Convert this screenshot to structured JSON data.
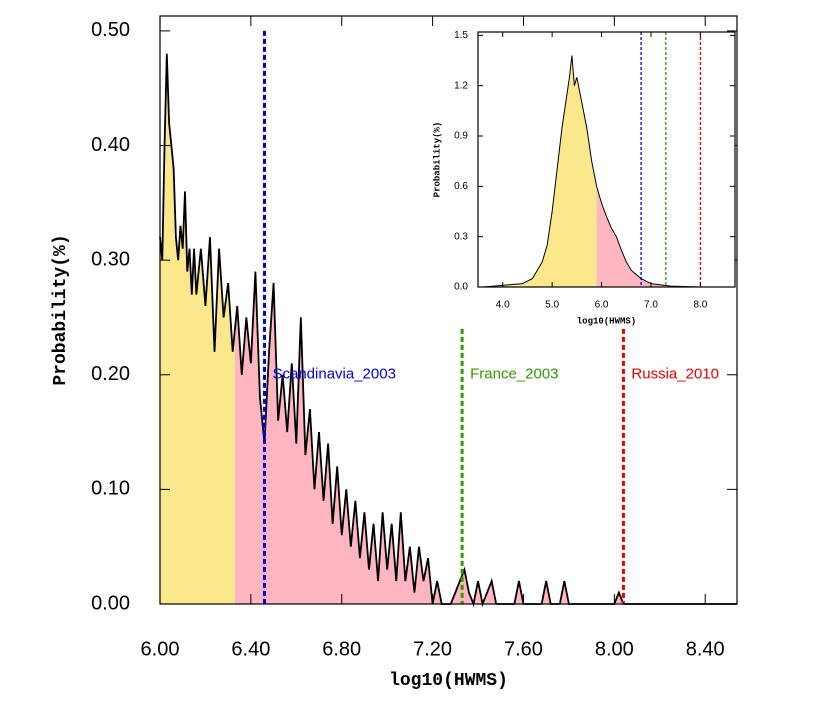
{
  "chart_data": [
    {
      "type": "area",
      "xlabel": "log10(HWMS)",
      "ylabel": "Probability(%)",
      "x": [
        6.0,
        6.01,
        6.02,
        6.03,
        6.04,
        6.05,
        6.06,
        6.07,
        6.08,
        6.09,
        6.1,
        6.11,
        6.12,
        6.13,
        6.14,
        6.15,
        6.16,
        6.18,
        6.2,
        6.22,
        6.24,
        6.26,
        6.28,
        6.3,
        6.32,
        6.34,
        6.36,
        6.38,
        6.4,
        6.42,
        6.44,
        6.46,
        6.48,
        6.5,
        6.52,
        6.54,
        6.56,
        6.58,
        6.6,
        6.62,
        6.64,
        6.66,
        6.68,
        6.7,
        6.72,
        6.74,
        6.76,
        6.78,
        6.8,
        6.82,
        6.84,
        6.86,
        6.88,
        6.9,
        6.92,
        6.94,
        6.96,
        6.98,
        7.0,
        7.02,
        7.04,
        7.06,
        7.08,
        7.1,
        7.12,
        7.14,
        7.16,
        7.18,
        7.2,
        7.22,
        7.24,
        7.28,
        7.3,
        7.32,
        7.34,
        7.36,
        7.38,
        7.4,
        7.42,
        7.46,
        7.48,
        7.56,
        7.58,
        7.6,
        7.68,
        7.7,
        7.72,
        7.76,
        7.78,
        7.8,
        8.0,
        8.02,
        8.04,
        8.54
      ],
      "values": [
        0.32,
        0.3,
        0.4,
        0.48,
        0.42,
        0.4,
        0.38,
        0.32,
        0.3,
        0.33,
        0.31,
        0.36,
        0.29,
        0.31,
        0.27,
        0.31,
        0.27,
        0.31,
        0.26,
        0.32,
        0.22,
        0.31,
        0.25,
        0.28,
        0.22,
        0.26,
        0.2,
        0.25,
        0.21,
        0.29,
        0.18,
        0.14,
        0.22,
        0.28,
        0.16,
        0.2,
        0.15,
        0.21,
        0.14,
        0.25,
        0.13,
        0.17,
        0.1,
        0.15,
        0.09,
        0.14,
        0.07,
        0.12,
        0.06,
        0.1,
        0.05,
        0.09,
        0.04,
        0.08,
        0.03,
        0.07,
        0.02,
        0.08,
        0.03,
        0.07,
        0.02,
        0.08,
        0.02,
        0.05,
        0.01,
        0.05,
        0.02,
        0.04,
        0.0,
        0.02,
        0.0,
        0.0,
        0.01,
        0.02,
        0.03,
        0.01,
        0.0,
        0.02,
        0.0,
        0.02,
        0.0,
        0.0,
        0.02,
        0.0,
        0.0,
        0.02,
        0.0,
        0.0,
        0.02,
        0.0,
        0.0,
        0.01,
        0.0,
        0.0
      ],
      "fill_split": 6.33,
      "colors": [
        "#fbe88c",
        "#ffb6c1"
      ],
      "line_color": "#000000",
      "xlim": [
        6.0,
        8.54
      ],
      "ylim": [
        0,
        0.513
      ],
      "xticks": [
        {
          "value": 6.0,
          "label": "6.00"
        },
        {
          "value": 6.4,
          "label": "6.40"
        },
        {
          "value": 6.8,
          "label": "6.80"
        },
        {
          "value": 7.2,
          "label": "7.20"
        },
        {
          "value": 7.6,
          "label": "7.60"
        },
        {
          "value": 8.0,
          "label": "8.00"
        },
        {
          "value": 8.4,
          "label": "8.40"
        }
      ],
      "yticks": [
        {
          "value": 0,
          "label": "0.00"
        },
        {
          "value": 0.1,
          "label": "0.10"
        },
        {
          "value": 0.2,
          "label": "0.20"
        },
        {
          "value": 0.3,
          "label": "0.30"
        },
        {
          "value": 0.4,
          "label": "0.40"
        },
        {
          "value": 0.5,
          "label": "0.50"
        }
      ],
      "vlines": [
        {
          "name": "Scandinavia_2003",
          "x": 6.46,
          "y_top": 0.5,
          "color": "#0000ee"
        },
        {
          "name": "France_2003",
          "x": 7.33,
          "y_top": 0.24,
          "color": "#339900"
        },
        {
          "name": "Russia_2010",
          "x": 8.04,
          "y_top": 0.24,
          "color": "#ee0000"
        }
      ],
      "label_y": 0.2
    },
    {
      "type": "area",
      "xlabel": "log10(HWMS)",
      "ylabel": "Probability(%)",
      "x": [
        3.6,
        4.0,
        4.4,
        4.6,
        4.8,
        4.9,
        5.0,
        5.1,
        5.2,
        5.3,
        5.35,
        5.4,
        5.45,
        5.5,
        5.6,
        5.7,
        5.8,
        5.9,
        6.0,
        6.1,
        6.2,
        6.3,
        6.4,
        6.5,
        6.6,
        6.8,
        7.0,
        7.4,
        8.0,
        8.6
      ],
      "values": [
        0.0,
        0.01,
        0.02,
        0.05,
        0.15,
        0.25,
        0.45,
        0.7,
        0.95,
        1.15,
        1.25,
        1.38,
        1.2,
        1.25,
        1.1,
        0.95,
        0.75,
        0.6,
        0.5,
        0.42,
        0.35,
        0.3,
        0.22,
        0.15,
        0.1,
        0.05,
        0.02,
        0.005,
        0.0,
        0.0
      ],
      "fill_split": 5.9,
      "colors": [
        "#fbe88c",
        "#ffb6c1"
      ],
      "line_color": "#000000",
      "xlim": [
        3.5,
        8.7
      ],
      "ylim": [
        0,
        1.52
      ],
      "xticks": [
        {
          "value": 4,
          "label": "4.0"
        },
        {
          "value": 5,
          "label": "5.0"
        },
        {
          "value": 6,
          "label": "6.0"
        },
        {
          "value": 7,
          "label": "7.0"
        },
        {
          "value": 8,
          "label": "8.0"
        }
      ],
      "yticks": [
        {
          "value": 0,
          "label": "0.0"
        },
        0.3,
        0.6,
        0.9,
        1.2,
        1.5
      ],
      "vlines": [
        {
          "x": 6.8,
          "y_top": 1.52,
          "color": "#0000ee"
        },
        {
          "x": 7.3,
          "y_top": 1.52,
          "color": "#339900"
        },
        {
          "x": 8.0,
          "y_top": 1.52,
          "color": "#ee0000"
        }
      ]
    }
  ]
}
